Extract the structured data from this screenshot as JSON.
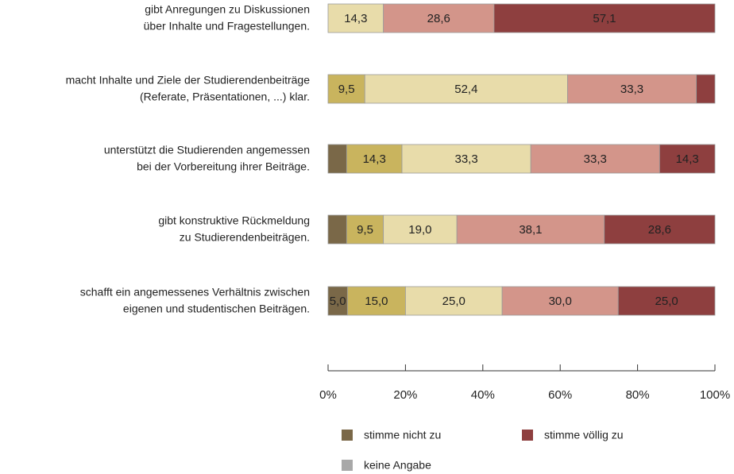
{
  "chart_data": {
    "type": "stacked-bar-horizontal",
    "categories": [
      [
        "gibt Anregungen zu Diskussionen",
        "über Inhalte und Fragestellungen."
      ],
      [
        "macht Inhalte und Ziele der Studierendenbeiträge",
        "(Referate, Präsentationen, ...) klar."
      ],
      [
        "unterstützt die Studierenden angemessen",
        "bei der Vorbereitung ihrer Beiträge."
      ],
      [
        "gibt konstruktive Rückmeldung",
        "zu Studierendenbeiträgen."
      ],
      [
        "schafft ein angemessenes Verhältnis zwischen",
        "eigenen und studentischen Beiträgen."
      ]
    ],
    "series": [
      {
        "name": "stimme nicht zu",
        "color": "#7a6848",
        "values": [
          null,
          null,
          4.8,
          4.8,
          5.0
        ],
        "value_labels": [
          null,
          null,
          null,
          null,
          "5,0"
        ]
      },
      {
        "name": null,
        "color": "#c9b45e",
        "values": [
          null,
          9.5,
          14.3,
          9.5,
          15.0
        ],
        "value_labels": [
          null,
          "9,5",
          "14,3",
          "9,5",
          "15,0"
        ]
      },
      {
        "name": null,
        "color": "#e8dcaa",
        "values": [
          14.3,
          52.4,
          33.3,
          19.0,
          25.0
        ],
        "value_labels": [
          "14,3",
          "52,4",
          "33,3",
          "19,0",
          "25,0"
        ]
      },
      {
        "name": null,
        "color": "#d3958a",
        "values": [
          28.6,
          33.3,
          33.3,
          38.1,
          30.0
        ],
        "value_labels": [
          "28,6",
          "33,3",
          "33,3",
          "38,1",
          "30,0"
        ]
      },
      {
        "name": "stimme völlig zu",
        "color": "#8e3f3f",
        "values": [
          57.1,
          4.8,
          14.3,
          28.6,
          25.0
        ],
        "value_labels": [
          "57,1",
          null,
          "14,3",
          "28,6",
          "25,0"
        ]
      },
      {
        "name": "keine Angabe",
        "color": "#a8a8a8",
        "values": [
          null,
          null,
          null,
          null,
          null
        ],
        "value_labels": [
          null,
          null,
          null,
          null,
          null
        ]
      }
    ],
    "xlim": [
      0,
      100
    ],
    "xticks": [
      {
        "value": 0,
        "label": "0%"
      },
      {
        "value": 20,
        "label": "20%"
      },
      {
        "value": 40,
        "label": "40%"
      },
      {
        "value": 60,
        "label": "60%"
      },
      {
        "value": 80,
        "label": "80%"
      },
      {
        "value": 100,
        "label": "100%"
      }
    ]
  }
}
